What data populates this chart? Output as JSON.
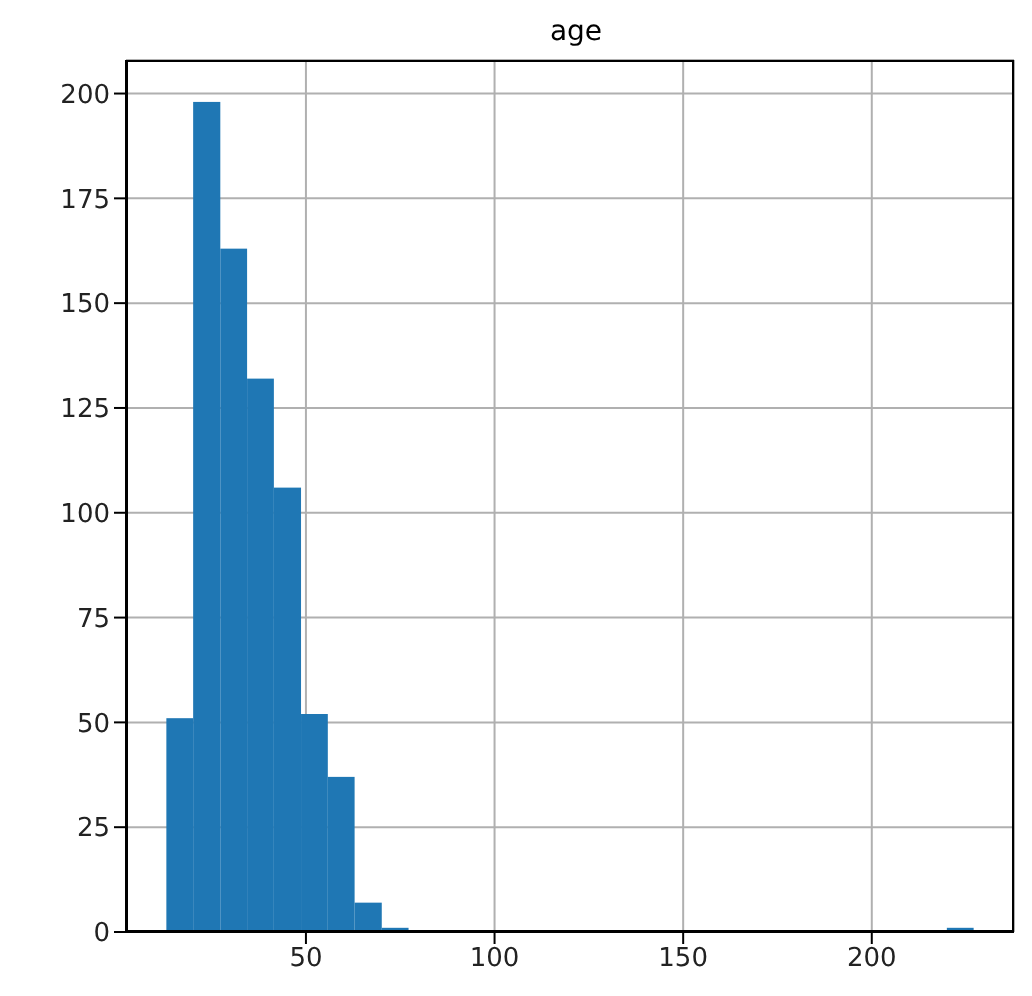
{
  "chart_data": {
    "type": "histogram",
    "title": "age",
    "bins": [
      13,
      20.1,
      27.3,
      34.4,
      41.5,
      48.7,
      55.8,
      62.9,
      70.1,
      77.2,
      84.3,
      91.5,
      98.6,
      105.7,
      112.9,
      120,
      127.1,
      134.3,
      141.4,
      148.5,
      155.7,
      162.8,
      169.9,
      177.1,
      184.2,
      191.3,
      198.5,
      205.6,
      212.7,
      219.9,
      227
    ],
    "values": [
      51,
      198,
      163,
      132,
      106,
      52,
      37,
      7,
      1,
      0,
      0,
      0,
      0,
      0,
      0,
      0,
      0,
      0,
      0,
      0,
      0,
      0,
      0,
      0,
      0,
      0,
      0,
      0,
      0,
      1
    ],
    "color": "#1f77b4",
    "xlim": [
      2.3,
      237.7
    ],
    "xticks": [
      50,
      100,
      150,
      200
    ],
    "ylim": [
      0,
      208
    ],
    "yticks": [
      0,
      25,
      50,
      75,
      100,
      125,
      150,
      175,
      200
    ],
    "grid": true
  }
}
